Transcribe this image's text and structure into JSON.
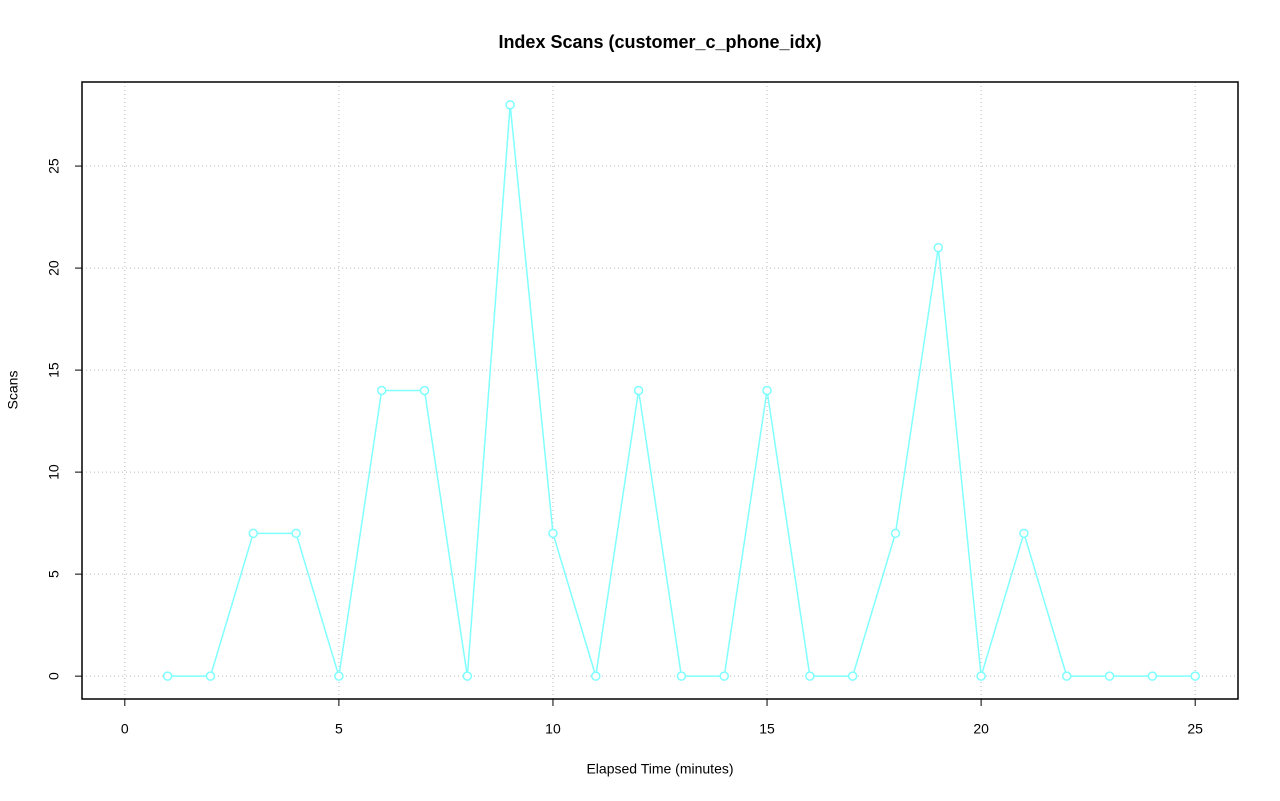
{
  "chart_data": {
    "type": "line",
    "title": "Index Scans (customer_c_phone_idx)",
    "x_label": "Elapsed Time (minutes)",
    "y_label": "Scans",
    "x": [
      1,
      2,
      3,
      4,
      5,
      6,
      7,
      8,
      9,
      10,
      11,
      12,
      13,
      14,
      15,
      16,
      17,
      18,
      19,
      20,
      21,
      22,
      23,
      24,
      25
    ],
    "series": [
      {
        "name": "Scans",
        "color": "#80ffff",
        "values": [
          0,
          0,
          7,
          7,
          0,
          14,
          14,
          0,
          28,
          7,
          0,
          14,
          0,
          0,
          14,
          0,
          0,
          7,
          21,
          0,
          7,
          0,
          0,
          0,
          0
        ]
      }
    ],
    "xlim": [
      -1,
      26
    ],
    "xticks": [
      0,
      5,
      10,
      15,
      20,
      25
    ],
    "ylim": [
      -1.12,
      29.12
    ],
    "yticks": [
      0,
      5,
      10,
      15,
      20,
      25
    ],
    "grid": true
  }
}
